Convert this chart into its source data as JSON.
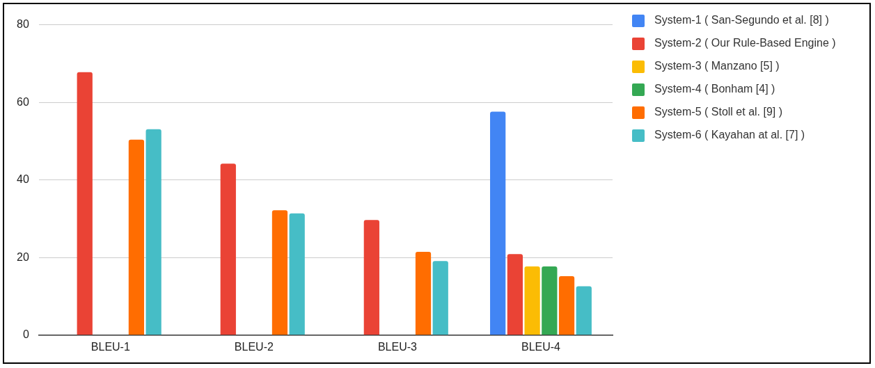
{
  "chart_data": {
    "type": "bar",
    "categories": [
      "BLEU-1",
      "BLEU-2",
      "BLEU-3",
      "BLEU-4"
    ],
    "series": [
      {
        "name": "System-1 ( San-Segundo et al. [8] )",
        "color": "#4285f4",
        "values": [
          null,
          null,
          null,
          57.6
        ]
      },
      {
        "name": "System-2 ( Our Rule-Based Engine )",
        "color": "#ea4335",
        "values": [
          67.8,
          44.2,
          29.7,
          20.9
        ]
      },
      {
        "name": "System-3 ( Manzano [5] )",
        "color": "#fbbc04",
        "values": [
          null,
          null,
          null,
          17.7
        ]
      },
      {
        "name": "System-4 ( Bonham [4] )",
        "color": "#34a853",
        "values": [
          null,
          null,
          null,
          17.7
        ]
      },
      {
        "name": "System-5 ( Stoll et al. [9] )",
        "color": "#ff6d01",
        "values": [
          50.4,
          32.2,
          21.5,
          15.2
        ]
      },
      {
        "name": "System-6 ( Kayahan at al. [7] )",
        "color": "#46bdc6",
        "values": [
          53.1,
          31.4,
          19.1,
          12.6
        ]
      }
    ],
    "ylim": [
      0,
      80
    ],
    "yticks": [
      0,
      20,
      40,
      60,
      80
    ],
    "grid": "y",
    "legend": "right"
  }
}
